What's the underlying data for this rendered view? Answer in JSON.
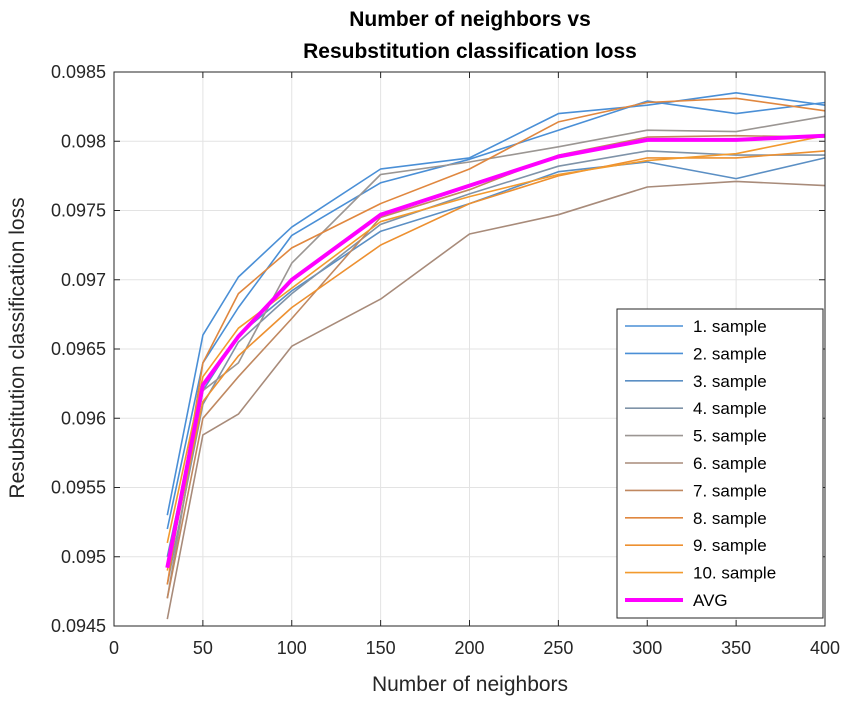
{
  "chart_data": {
    "type": "line",
    "title_line1": "Number of neighbors vs",
    "title_line2": "Resubstitution classification loss",
    "xlabel": "Number of neighbors",
    "ylabel": "Resubstitution classification loss",
    "xlim": [
      0,
      400
    ],
    "ylim": [
      0.0945,
      0.0985
    ],
    "xticks": [
      0,
      50,
      100,
      150,
      200,
      250,
      300,
      350,
      400
    ],
    "xtick_labels": [
      "0",
      "50",
      "100",
      "150",
      "200",
      "250",
      "300",
      "350",
      "400"
    ],
    "yticks": [
      0.0945,
      0.095,
      0.0955,
      0.096,
      0.0965,
      0.097,
      0.0975,
      0.098,
      0.0985
    ],
    "ytick_labels": [
      "0.0945",
      "0.095",
      "0.0955",
      "0.096",
      "0.0965",
      "0.097",
      "0.0975",
      "0.098",
      "0.0985"
    ],
    "grid": true,
    "legend_position": "bottom-right",
    "x": [
      30,
      50,
      70,
      100,
      150,
      200,
      250,
      300,
      350,
      400
    ],
    "series": [
      {
        "name": "1. sample",
        "color": "#4a8fd6",
        "values": [
          0.0953,
          0.0966,
          0.09702,
          0.09738,
          0.0978,
          0.09788,
          0.0982,
          0.09826,
          0.09835,
          0.09826
        ]
      },
      {
        "name": "2. sample",
        "color": "#4a8fd6",
        "values": [
          0.0952,
          0.0964,
          0.0968,
          0.09732,
          0.0977,
          0.09787,
          0.09808,
          0.09829,
          0.0982,
          0.09828
        ]
      },
      {
        "name": "3. sample",
        "color": "#5b8fc4",
        "values": [
          0.095,
          0.0962,
          0.0966,
          0.09692,
          0.09735,
          0.09755,
          0.09778,
          0.09785,
          0.09773,
          0.09788
        ]
      },
      {
        "name": "4. sample",
        "color": "#7f93a8",
        "values": [
          0.0948,
          0.0961,
          0.09655,
          0.0969,
          0.0974,
          0.09762,
          0.09782,
          0.09793,
          0.0979,
          0.0979
        ]
      },
      {
        "name": "5. sample",
        "color": "#9b9693",
        "values": [
          0.0947,
          0.0962,
          0.0964,
          0.09712,
          0.09776,
          0.09785,
          0.09796,
          0.09808,
          0.09807,
          0.09818
        ]
      },
      {
        "name": "6. sample",
        "color": "#a88b7a",
        "values": [
          0.09455,
          0.09588,
          0.09603,
          0.09652,
          0.09686,
          0.09733,
          0.09747,
          0.09767,
          0.09771,
          0.09768
        ]
      },
      {
        "name": "7. sample",
        "color": "#c08860",
        "values": [
          0.0947,
          0.096,
          0.0963,
          0.09672,
          0.09745,
          0.09765,
          0.0979,
          0.09803,
          0.09804,
          0.09803
        ]
      },
      {
        "name": "8. sample",
        "color": "#e0873f",
        "values": [
          0.0948,
          0.0964,
          0.0969,
          0.09723,
          0.09755,
          0.0978,
          0.09814,
          0.09828,
          0.09831,
          0.09822
        ]
      },
      {
        "name": "9. sample",
        "color": "#ed9030",
        "values": [
          0.0949,
          0.09612,
          0.09645,
          0.0968,
          0.09725,
          0.09755,
          0.09775,
          0.09788,
          0.09788,
          0.09793
        ]
      },
      {
        "name": "10. sample",
        "color": "#f29a2e",
        "values": [
          0.0951,
          0.0963,
          0.09665,
          0.09694,
          0.09742,
          0.0976,
          0.09776,
          0.09786,
          0.09791,
          0.09804
        ]
      },
      {
        "name": "AVG",
        "color": "#ff00ff",
        "values": [
          0.09492,
          0.09624,
          0.09659,
          0.097,
          0.09747,
          0.09768,
          0.09789,
          0.09801,
          0.09801,
          0.09804
        ],
        "thick": true
      }
    ]
  }
}
